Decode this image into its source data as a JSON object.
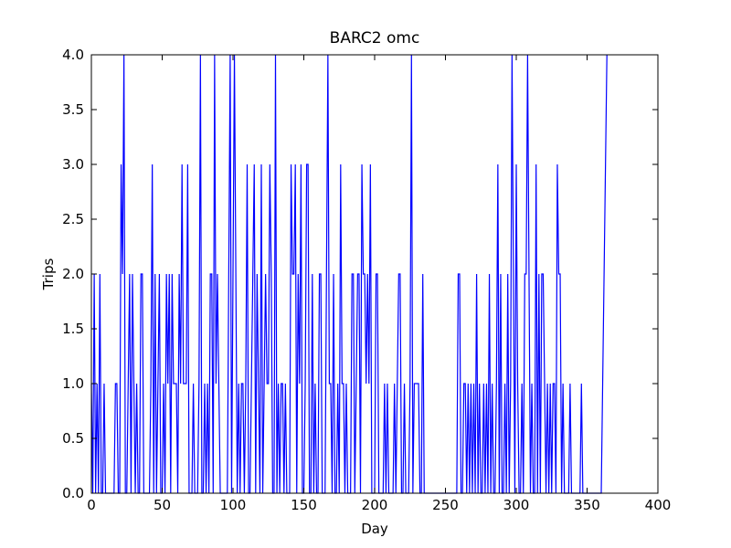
{
  "chart_data": {
    "type": "line",
    "title": "BARC2 omc",
    "x_label": "Day",
    "y_label": "Trips",
    "xlim": [
      0,
      400
    ],
    "ylim": [
      0,
      4
    ],
    "xticks": [
      0,
      50,
      100,
      150,
      200,
      250,
      300,
      350,
      400
    ],
    "yticks": [
      {
        "value": 0,
        "label": "0.0"
      },
      {
        "value": 0.5,
        "label": "0.5"
      },
      {
        "value": 1,
        "label": "1.0"
      },
      {
        "value": 1.5,
        "label": "1.5"
      },
      {
        "value": 2,
        "label": "2.0"
      },
      {
        "value": 2.5,
        "label": "2.5"
      },
      {
        "value": 3,
        "label": "3.0"
      },
      {
        "value": 3.5,
        "label": "3.5"
      },
      {
        "value": 4,
        "label": "4.0"
      }
    ],
    "x": [
      0,
      1,
      2,
      3,
      4,
      5,
      6,
      7,
      8,
      9,
      10,
      11,
      12,
      13,
      14,
      15,
      16,
      17,
      18,
      19,
      20,
      21,
      22,
      23,
      24,
      25,
      26,
      27,
      28,
      29,
      30,
      31,
      32,
      33,
      34,
      35,
      36,
      37,
      38,
      39,
      40,
      41,
      42,
      43,
      44,
      45,
      46,
      47,
      48,
      49,
      50,
      51,
      52,
      53,
      54,
      55,
      56,
      57,
      58,
      59,
      60,
      61,
      62,
      63,
      64,
      65,
      66,
      67,
      68,
      69,
      70,
      71,
      72,
      73,
      74,
      75,
      76,
      77,
      78,
      79,
      80,
      81,
      82,
      83,
      84,
      85,
      86,
      87,
      88,
      89,
      90,
      91,
      92,
      93,
      94,
      95,
      96,
      97,
      98,
      99,
      100,
      101,
      102,
      103,
      104,
      105,
      106,
      107,
      108,
      109,
      110,
      111,
      112,
      113,
      114,
      115,
      116,
      117,
      118,
      119,
      120,
      121,
      122,
      123,
      124,
      125,
      126,
      127,
      128,
      129,
      130,
      131,
      132,
      133,
      134,
      135,
      136,
      137,
      138,
      139,
      140,
      141,
      142,
      143,
      144,
      145,
      146,
      147,
      148,
      149,
      150,
      151,
      152,
      153,
      154,
      155,
      156,
      157,
      158,
      159,
      160,
      161,
      162,
      163,
      164,
      165,
      166,
      167,
      168,
      169,
      170,
      171,
      172,
      173,
      174,
      175,
      176,
      177,
      178,
      179,
      180,
      181,
      182,
      183,
      184,
      185,
      186,
      187,
      188,
      189,
      190,
      191,
      192,
      193,
      194,
      195,
      196,
      197,
      198,
      199,
      200,
      201,
      202,
      203,
      204,
      205,
      206,
      207,
      208,
      209,
      210,
      211,
      212,
      213,
      214,
      215,
      216,
      217,
      218,
      219,
      220,
      221,
      222,
      223,
      224,
      225,
      226,
      227,
      228,
      229,
      230,
      231,
      232,
      233,
      234,
      235,
      236,
      237,
      238,
      239,
      240,
      241,
      242,
      243,
      244,
      245,
      246,
      247,
      248,
      249,
      250,
      251,
      252,
      253,
      254,
      255,
      256,
      257,
      258,
      259,
      260,
      261,
      262,
      263,
      264,
      265,
      266,
      267,
      268,
      269,
      270,
      271,
      272,
      273,
      274,
      275,
      276,
      277,
      278,
      279,
      280,
      281,
      282,
      283,
      284,
      285,
      286,
      287,
      288,
      289,
      290,
      291,
      292,
      293,
      294,
      295,
      296,
      297,
      298,
      299,
      300,
      301,
      302,
      303,
      304,
      305,
      306,
      307,
      308,
      309,
      310,
      311,
      312,
      313,
      314,
      315,
      316,
      317,
      318,
      319,
      320,
      321,
      322,
      323,
      324,
      325,
      326,
      327,
      328,
      329,
      330,
      331,
      332,
      333,
      334,
      335,
      336,
      337,
      338,
      339,
      340,
      341,
      342,
      343,
      344,
      345,
      346,
      347,
      348,
      349,
      350,
      351,
      352,
      353,
      354,
      355,
      356,
      357,
      358,
      359,
      360,
      361,
      362,
      363,
      364
    ],
    "series": [
      {
        "color": "#0000ff",
        "values": [
          1,
          0,
          2,
          0,
          1,
          0,
          2,
          0,
          0,
          1,
          0,
          0,
          0,
          0,
          0,
          0,
          0,
          1,
          1,
          0,
          0,
          3,
          2,
          4,
          0,
          0,
          1,
          2,
          0,
          2,
          1,
          0,
          1,
          0,
          0,
          2,
          2,
          0,
          0,
          0,
          0,
          0,
          1,
          3,
          0,
          2,
          0,
          1,
          2,
          0,
          0,
          1,
          0,
          2,
          1,
          2,
          0,
          2,
          1,
          1,
          1,
          0,
          2,
          1,
          3,
          1,
          1,
          1,
          3,
          0,
          0,
          0,
          1,
          0,
          0,
          0,
          1,
          4,
          0,
          0,
          1,
          0,
          1,
          0,
          2,
          2,
          0,
          4,
          1,
          2,
          1,
          0,
          0,
          0,
          0,
          0,
          0,
          2,
          4,
          0,
          2,
          4,
          2,
          0,
          1,
          0,
          1,
          1,
          0,
          1,
          3,
          0,
          0,
          1,
          2,
          3,
          0,
          2,
          1,
          0,
          3,
          0,
          1,
          2,
          1,
          1,
          3,
          2,
          0,
          0,
          4,
          0,
          1,
          0,
          1,
          1,
          0,
          1,
          0,
          0,
          0,
          3,
          2,
          2,
          3,
          0,
          2,
          1,
          3,
          0,
          0,
          1,
          3,
          3,
          0,
          0,
          2,
          0,
          1,
          0,
          0,
          2,
          2,
          0,
          0,
          0,
          2,
          4,
          1,
          1,
          0,
          2,
          0,
          0,
          1,
          0,
          3,
          1,
          1,
          0,
          1,
          0,
          0,
          0,
          2,
          2,
          0,
          1,
          2,
          2,
          0,
          3,
          2,
          2,
          1,
          2,
          1,
          3,
          0,
          0,
          0,
          2,
          2,
          0,
          0,
          0,
          0,
          1,
          0,
          1,
          0,
          0,
          0,
          0,
          1,
          0,
          1,
          2,
          2,
          0,
          0,
          1,
          0,
          0,
          0,
          1,
          4,
          0,
          1,
          1,
          1,
          1,
          0,
          0,
          2,
          0,
          0,
          0,
          0,
          0,
          0,
          0,
          0,
          0,
          0,
          0,
          0,
          0,
          0,
          0,
          0,
          0,
          0,
          0,
          0,
          0,
          0,
          0,
          0,
          2,
          2,
          0,
          0,
          1,
          1,
          0,
          1,
          0,
          1,
          0,
          1,
          0,
          2,
          0,
          1,
          0,
          0,
          1,
          0,
          1,
          0,
          2,
          0,
          1,
          0,
          0,
          1,
          3,
          0,
          2,
          0,
          0,
          1,
          0,
          2,
          0,
          1,
          4,
          2,
          0,
          3,
          1,
          0,
          0,
          1,
          0,
          2,
          2,
          4,
          2,
          0,
          1,
          0,
          0,
          3,
          0,
          2,
          0,
          2,
          2,
          1,
          0,
          1,
          0,
          1,
          0,
          1,
          1,
          0,
          3,
          2,
          2,
          0,
          1,
          0,
          0,
          0,
          0,
          1,
          0,
          0,
          0,
          0,
          0,
          0,
          0,
          1,
          0,
          0,
          0,
          0,
          0,
          0,
          0,
          0,
          0,
          0,
          0,
          0,
          0,
          0,
          1,
          2,
          3,
          4
        ]
      }
    ]
  }
}
